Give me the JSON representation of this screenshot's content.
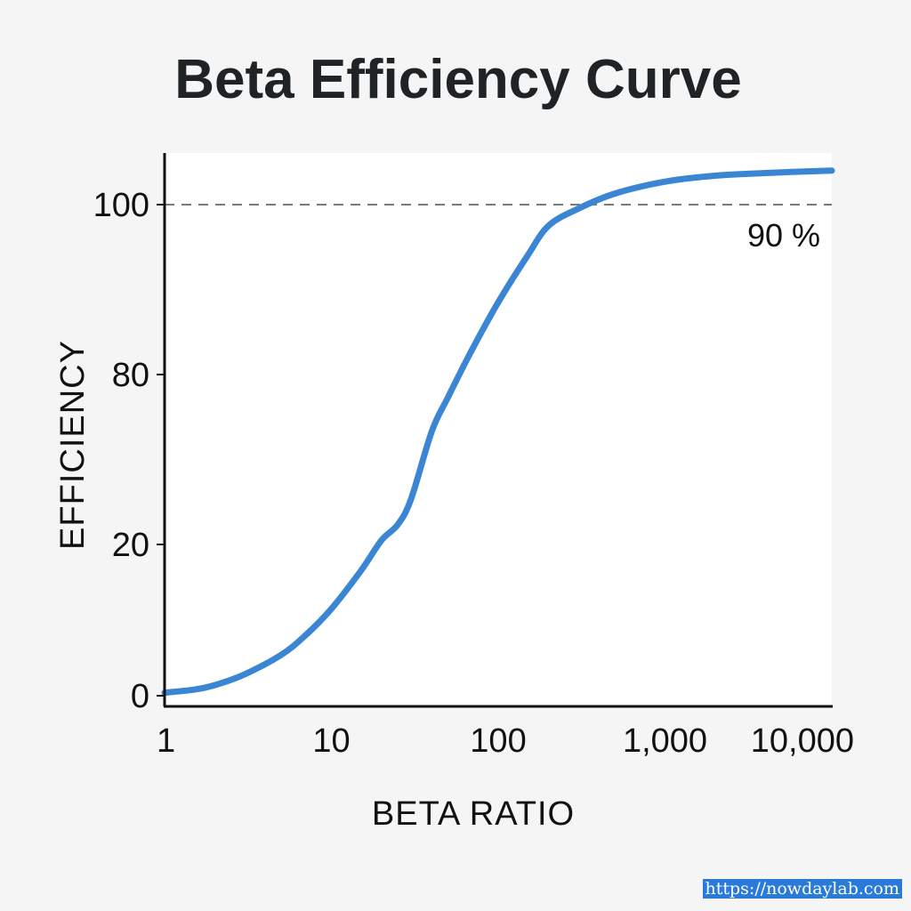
{
  "chart_data": {
    "type": "line",
    "title": "Beta Efficiency Curve",
    "xlabel": "BETA RATIO",
    "ylabel": "EFFICIENCY",
    "x_scale": "log",
    "xlim": [
      1,
      10000
    ],
    "x_ticks": [
      1,
      10,
      100,
      1000,
      10000
    ],
    "x_tick_labels": [
      "1",
      "10",
      "100",
      "1,000",
      "10,000"
    ],
    "y_ticks": [
      0,
      20,
      80,
      100
    ],
    "y_tick_labels": [
      "0",
      "20",
      "80",
      "100"
    ],
    "grid": false,
    "legend": "none",
    "series": [
      {
        "color": "#3b86d4",
        "x": [
          1,
          1.5,
          2,
          3,
          5,
          7,
          10,
          15,
          20,
          25,
          30,
          40,
          50,
          70,
          100,
          150,
          200,
          300,
          500,
          1000,
          2000,
          5000,
          10000
        ],
        "y": [
          0.4,
          0.8,
          1.4,
          2.8,
          5.4,
          8.0,
          11.5,
          16.5,
          21.5,
          27,
          36,
          60,
          72,
          83,
          88.5,
          94,
          97.5,
          99.5,
          101.3,
          102.7,
          103.4,
          103.8,
          104
        ]
      }
    ],
    "reference_line": {
      "y": 100,
      "style": "dashed",
      "color": "#7a7a7a",
      "label": "90 %"
    }
  },
  "watermark": "https://nowdaylab.com"
}
